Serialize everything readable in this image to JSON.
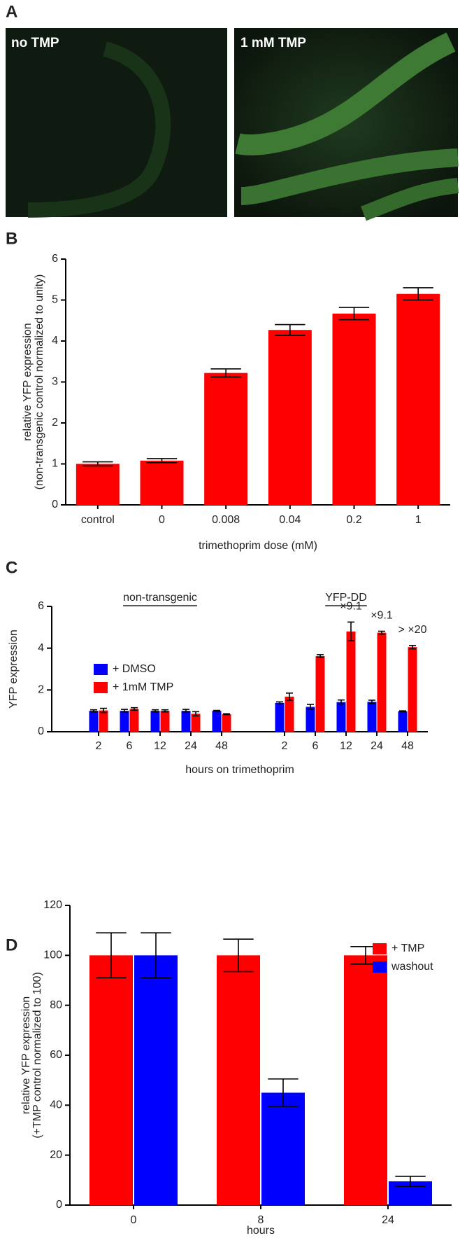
{
  "panel_labels": [
    "A",
    "B",
    "C",
    "D"
  ],
  "images": [
    {
      "label": "no TMP"
    },
    {
      "label": "1 mM TMP"
    }
  ],
  "chart_data": [
    {
      "type": "bar",
      "categories": [
        "control",
        "0",
        "0.008",
        "0.04",
        "0.2",
        "1"
      ],
      "values": [
        1.0,
        1.08,
        3.22,
        4.27,
        4.67,
        5.15
      ],
      "errors": [
        0.05,
        0.05,
        0.1,
        0.13,
        0.15,
        0.15
      ],
      "color": "#ff0000",
      "ylim": [
        0,
        6
      ],
      "yticks": [
        0,
        1,
        2,
        3,
        4,
        5,
        6
      ],
      "ylabel": [
        "relative YFP expression",
        "(non-transgenic control normalized to unity)"
      ],
      "xlabel": "trimethoprim dose (mM)"
    },
    {
      "type": "grouped_bar",
      "group_labels": [
        "non-transgenic",
        "YFP-DD"
      ],
      "categories": [
        "2",
        "6",
        "12",
        "24",
        "48",
        "2",
        "6",
        "12",
        "24",
        "48"
      ],
      "series": [
        {
          "name": "+ DMSO",
          "color": "#0000ff",
          "values": [
            1.0,
            1.0,
            1.0,
            1.0,
            1.0,
            1.38,
            1.19,
            1.42,
            1.43,
            0.98
          ],
          "errors": [
            0.05,
            0.07,
            0.05,
            0.07,
            0.02,
            0.05,
            0.12,
            0.1,
            0.08,
            0.02
          ]
        },
        {
          "name": "+ 1mM TMP",
          "color": "#ff0000",
          "values": [
            1.02,
            1.09,
            1.0,
            0.86,
            0.84,
            1.68,
            3.62,
            4.8,
            4.74,
            4.05
          ],
          "errors": [
            0.1,
            0.06,
            0.05,
            0.1,
            0.02,
            0.17,
            0.07,
            0.45,
            0.07,
            0.08
          ],
          "annotations": [
            null,
            null,
            null,
            null,
            null,
            null,
            null,
            "×9.1",
            "×9.1",
            "> ×20"
          ]
        }
      ],
      "ylim": [
        0,
        6
      ],
      "yticks": [
        0,
        2,
        4,
        6
      ],
      "ylabel": [
        "YFP expression"
      ],
      "xlabel": "hours on trimethoprim",
      "legend": "left"
    },
    {
      "type": "grouped_bar",
      "categories": [
        "0",
        "8",
        "24"
      ],
      "series": [
        {
          "name": "+ TMP",
          "color": "#ff0000",
          "values": [
            100,
            100,
            100
          ],
          "errors": [
            9,
            6.5,
            3.5
          ]
        },
        {
          "name": "washout",
          "color": "#0000ff",
          "values": [
            100,
            45,
            9.5
          ],
          "errors": [
            9,
            5.5,
            2
          ]
        }
      ],
      "ylim": [
        0,
        120
      ],
      "yticks": [
        0,
        20,
        40,
        60,
        80,
        100,
        120
      ],
      "ylabel": [
        "relative YFP expression",
        "(+TMP control normalized to 100)"
      ],
      "xlabel": "hours",
      "legend": "upper right"
    }
  ]
}
